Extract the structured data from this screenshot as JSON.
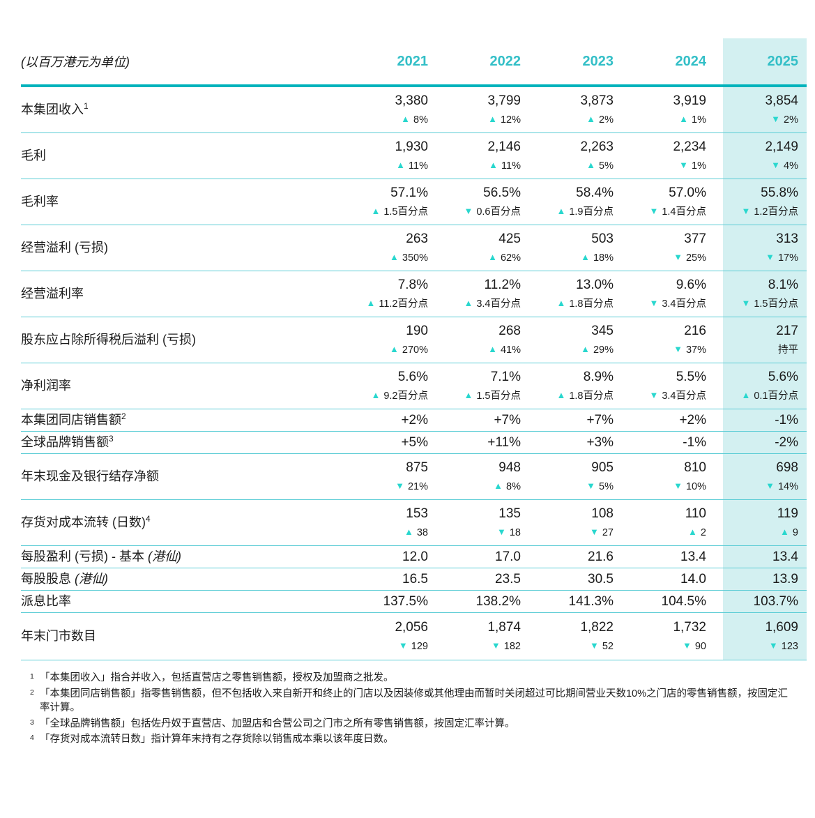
{
  "unit_label": "(以百万港元为单位)",
  "years": [
    "2021",
    "2022",
    "2023",
    "2024",
    "2025"
  ],
  "highlight_year": "2025",
  "colors": {
    "accent": "#00b3bc",
    "separator": "#5accd5",
    "year_text": "#33bfc7",
    "arrow": "#29d7ce",
    "highlight_bg": "#d3f0f1",
    "text": "#1c1c1c"
  },
  "table": {
    "rows": [
      {
        "label": "本集团收入",
        "sup": "1",
        "values": [
          "3,380",
          "3,799",
          "3,873",
          "3,919",
          "3,854"
        ],
        "changes": [
          {
            "dir": "up",
            "text": "8%"
          },
          {
            "dir": "up",
            "text": "12%"
          },
          {
            "dir": "up",
            "text": "2%"
          },
          {
            "dir": "up",
            "text": "1%"
          },
          {
            "dir": "down",
            "text": "2%"
          }
        ]
      },
      {
        "label": "毛利",
        "values": [
          "1,930",
          "2,146",
          "2,263",
          "2,234",
          "2,149"
        ],
        "changes": [
          {
            "dir": "up",
            "text": "11%"
          },
          {
            "dir": "up",
            "text": "11%"
          },
          {
            "dir": "up",
            "text": "5%"
          },
          {
            "dir": "down",
            "text": "1%"
          },
          {
            "dir": "down",
            "text": "4%"
          }
        ]
      },
      {
        "label": "毛利率",
        "values": [
          "57.1%",
          "56.5%",
          "58.4%",
          "57.0%",
          "55.8%"
        ],
        "changes": [
          {
            "dir": "up",
            "text": "1.5百分点"
          },
          {
            "dir": "down",
            "text": "0.6百分点"
          },
          {
            "dir": "up",
            "text": "1.9百分点"
          },
          {
            "dir": "down",
            "text": "1.4百分点"
          },
          {
            "dir": "down",
            "text": "1.2百分点"
          }
        ]
      },
      {
        "label": "经营溢利 (亏损)",
        "values": [
          "263",
          "425",
          "503",
          "377",
          "313"
        ],
        "changes": [
          {
            "dir": "up",
            "text": "350%"
          },
          {
            "dir": "up",
            "text": "62%"
          },
          {
            "dir": "up",
            "text": "18%"
          },
          {
            "dir": "down",
            "text": "25%"
          },
          {
            "dir": "down",
            "text": "17%"
          }
        ]
      },
      {
        "label": "经营溢利率",
        "values": [
          "7.8%",
          "11.2%",
          "13.0%",
          "9.6%",
          "8.1%"
        ],
        "changes": [
          {
            "dir": "up",
            "text": "11.2百分点"
          },
          {
            "dir": "up",
            "text": "3.4百分点"
          },
          {
            "dir": "up",
            "text": "1.8百分点"
          },
          {
            "dir": "down",
            "text": "3.4百分点"
          },
          {
            "dir": "down",
            "text": "1.5百分点"
          }
        ]
      },
      {
        "label": "股东应占除所得税后溢利 (亏损)",
        "values": [
          "190",
          "268",
          "345",
          "216",
          "217"
        ],
        "changes": [
          {
            "dir": "up",
            "text": "270%"
          },
          {
            "dir": "up",
            "text": "41%"
          },
          {
            "dir": "up",
            "text": "29%"
          },
          {
            "dir": "down",
            "text": "37%"
          },
          {
            "dir": "flat",
            "text": "持平"
          }
        ]
      },
      {
        "label": "净利润率",
        "values": [
          "5.6%",
          "7.1%",
          "8.9%",
          "5.5%",
          "5.6%"
        ],
        "changes": [
          {
            "dir": "up",
            "text": "9.2百分点"
          },
          {
            "dir": "up",
            "text": "1.5百分点"
          },
          {
            "dir": "up",
            "text": "1.8百分点"
          },
          {
            "dir": "down",
            "text": "3.4百分点"
          },
          {
            "dir": "up",
            "text": "0.1百分点"
          }
        ]
      },
      {
        "label": "本集团同店销售额",
        "sup": "2",
        "values": [
          "+2%",
          "+7%",
          "+7%",
          "+2%",
          "-1%"
        ],
        "changes": null
      },
      {
        "label": "全球品牌销售额",
        "sup": "3",
        "values": [
          "+5%",
          "+11%",
          "+3%",
          "-1%",
          "-2%"
        ],
        "changes": null
      },
      {
        "label": "年末现金及银行结存净额",
        "values": [
          "875",
          "948",
          "905",
          "810",
          "698"
        ],
        "changes": [
          {
            "dir": "down",
            "text": "21%"
          },
          {
            "dir": "up",
            "text": "8%"
          },
          {
            "dir": "down",
            "text": "5%"
          },
          {
            "dir": "down",
            "text": "10%"
          },
          {
            "dir": "down",
            "text": "14%"
          }
        ]
      },
      {
        "label": "存货对成本流转 (日数)",
        "sup": "4",
        "values": [
          "153",
          "135",
          "108",
          "110",
          "119"
        ],
        "changes": [
          {
            "dir": "up",
            "text": "38"
          },
          {
            "dir": "down",
            "text": "18"
          },
          {
            "dir": "down",
            "text": "27"
          },
          {
            "dir": "up",
            "text": "2"
          },
          {
            "dir": "up",
            "text": "9"
          }
        ]
      },
      {
        "label": "每股盈利 (亏损) - 基本 ",
        "label_italic": "(港仙)",
        "values": [
          "12.0",
          "17.0",
          "21.6",
          "13.4",
          "13.4"
        ],
        "changes": null
      },
      {
        "label": "每股股息 ",
        "label_italic": "(港仙)",
        "values": [
          "16.5",
          "23.5",
          "30.5",
          "14.0",
          "13.9"
        ],
        "changes": null
      },
      {
        "label": "派息比率",
        "values": [
          "137.5%",
          "138.2%",
          "141.3%",
          "104.5%",
          "103.7%"
        ],
        "changes": null
      },
      {
        "label": "年末门市数目",
        "values": [
          "2,056",
          "1,874",
          "1,822",
          "1,732",
          "1,609"
        ],
        "changes": [
          {
            "dir": "down",
            "text": "129"
          },
          {
            "dir": "down",
            "text": "182"
          },
          {
            "dir": "down",
            "text": "52"
          },
          {
            "dir": "down",
            "text": "90"
          },
          {
            "dir": "down",
            "text": "123"
          }
        ]
      }
    ]
  },
  "footnotes": [
    {
      "sup": "1",
      "text": "「本集团收入」指合并收入，包括直营店之零售销售额，授权及加盟商之批发。"
    },
    {
      "sup": "2",
      "text": "「本集团同店销售额」指零售销售额，但不包括收入来自新开和终止的门店以及因装修或其他理由而暂时关闭超过可比期间营业天数10%之门店的零售销售额，按固定汇率计算。"
    },
    {
      "sup": "3",
      "text": "「全球品牌销售额」包括佐丹奴于直营店、加盟店和合营公司之门市之所有零售销售额，按固定汇率计算。"
    },
    {
      "sup": "4",
      "text": "「存货对成本流转日数」指计算年末持有之存货除以销售成本乘以该年度日数。"
    }
  ]
}
